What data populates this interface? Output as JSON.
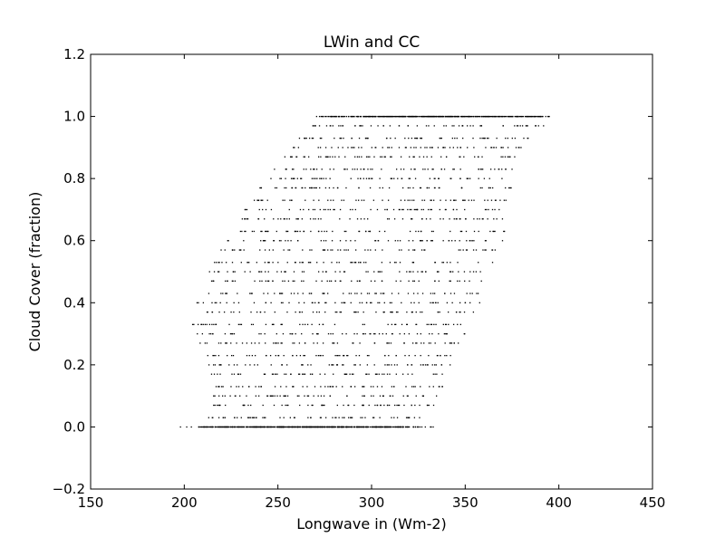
{
  "chart_data": {
    "type": "scatter",
    "title": "LWin and CC",
    "xlabel": "Longwave in (Wm-2)",
    "ylabel": "Cloud Cover (fraction)",
    "xlim": [
      150,
      450
    ],
    "ylim": [
      -0.2,
      1.2
    ],
    "xticks": [
      150,
      200,
      250,
      300,
      350,
      400,
      450
    ],
    "xtick_labels": [
      "150",
      "200",
      "250",
      "300",
      "350",
      "400",
      "450"
    ],
    "yticks": [
      -0.2,
      0.0,
      0.2,
      0.4,
      0.6,
      0.8,
      1.0,
      1.2
    ],
    "ytick_labels": [
      "−0.2",
      "0.0",
      "0.2",
      "0.4",
      "0.6",
      "0.8",
      "1.0",
      "1.2"
    ],
    "grid": false,
    "marker_color": "#000000",
    "series": [
      {
        "values_y": [
          0.0,
          1.0,
          0.97,
          0.93,
          0.9,
          0.87,
          0.83,
          0.8,
          0.77,
          0.73,
          0.7,
          0.67,
          0.63,
          0.6,
          0.57,
          0.53,
          0.5,
          0.47,
          0.43,
          0.4,
          0.37,
          0.33,
          0.3,
          0.27,
          0.23,
          0.2,
          0.17,
          0.13,
          0.1,
          0.07,
          0.03
        ],
        "x_min_at_y": [
          197,
          265,
          262,
          258,
          255,
          252,
          248,
          244,
          240,
          236,
          232,
          229,
          226,
          222,
          219,
          216,
          213,
          210,
          208,
          206,
          205,
          204,
          206,
          208,
          210,
          212,
          214,
          214,
          215,
          214,
          212
        ],
        "x_max_at_y": [
          340,
          400,
          393,
          384,
          382,
          380,
          378,
          377,
          375,
          373,
          372,
          371,
          371,
          370,
          368,
          365,
          363,
          361,
          360,
          358,
          356,
          353,
          350,
          348,
          345,
          342,
          340,
          338,
          336,
          334,
          332
        ]
      }
    ],
    "annotations": []
  }
}
